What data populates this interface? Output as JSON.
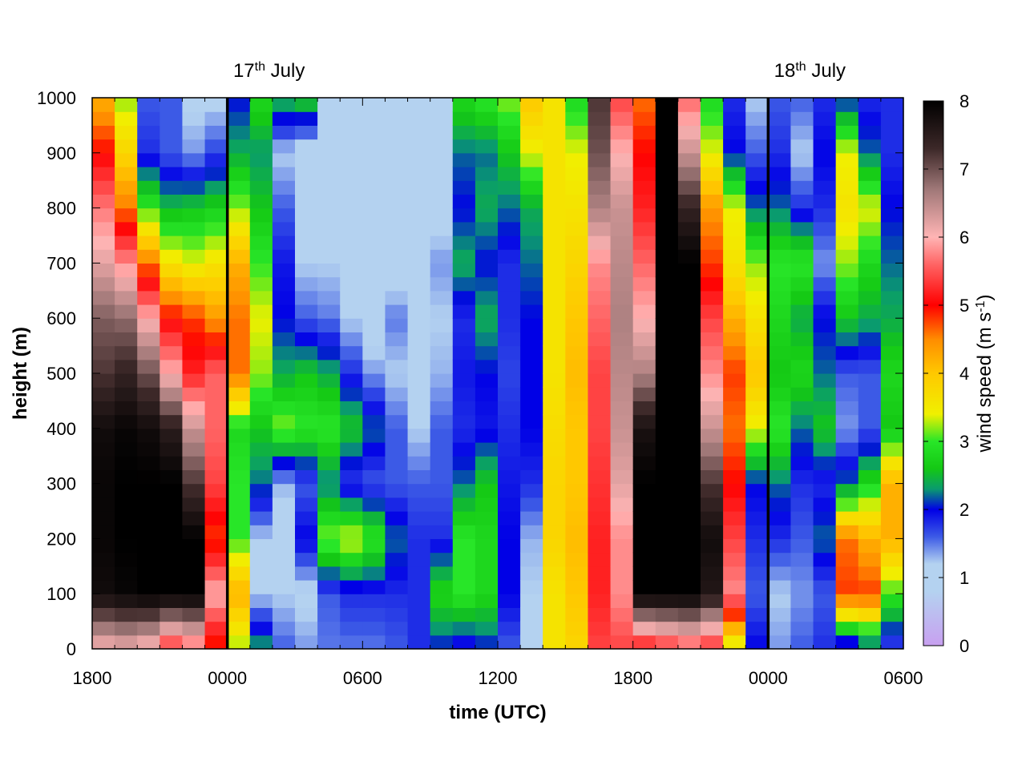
{
  "chart_data": {
    "type": "heatmap",
    "xlabel": "time (UTC)",
    "ylabel": "height (m)",
    "x_tick_labels": [
      "1800",
      "0000",
      "0600",
      "1200",
      "1800",
      "0000",
      "0600"
    ],
    "x_tick_hours": [
      0,
      6,
      12,
      18,
      24,
      30,
      36
    ],
    "xlim_hours": [
      0,
      36
    ],
    "y_ticks": [
      0,
      100,
      200,
      300,
      400,
      500,
      600,
      700,
      800,
      900,
      1000
    ],
    "ylim": [
      0,
      1000
    ],
    "colorbar": {
      "label_main": "wind speed (m s",
      "label_sup": "-1",
      "label_end": ")",
      "ticks": [
        0,
        1,
        2,
        3,
        4,
        5,
        6,
        7,
        8
      ],
      "range": [
        0,
        8
      ]
    },
    "day_markers": [
      {
        "hour": 6,
        "label": "17",
        "sup": "th",
        "suffix": " July"
      },
      {
        "hour": 30,
        "label": "18",
        "sup": "th",
        "suffix": " July"
      }
    ],
    "colormap": [
      [
        0,
        "#c8a0f0"
      ],
      [
        0.8,
        "#b4d2f0"
      ],
      [
        1.2,
        "#b4d2f0"
      ],
      [
        1.6,
        "#3c5ae6"
      ],
      [
        2,
        "#0000e6"
      ],
      [
        2.3,
        "#0a9b6e"
      ],
      [
        2.6,
        "#14c814"
      ],
      [
        3,
        "#28e628"
      ],
      [
        3.4,
        "#f0f000"
      ],
      [
        4,
        "#ffc800"
      ],
      [
        4.5,
        "#ff8c00"
      ],
      [
        5,
        "#ff0000"
      ],
      [
        5.6,
        "#ff6464"
      ],
      [
        6,
        "#ffb4b4"
      ],
      [
        6.7,
        "#a07878"
      ],
      [
        7.3,
        "#3c2828"
      ],
      [
        8,
        "#000000"
      ]
    ],
    "grid_hours": [
      0,
      1,
      2,
      3,
      4,
      5,
      6,
      7,
      8,
      9,
      10,
      11,
      12,
      13,
      14,
      15,
      16,
      17,
      18,
      19,
      20,
      21,
      22,
      23,
      24,
      25,
      26,
      27,
      28,
      29,
      30,
      31,
      32,
      33,
      34,
      35
    ],
    "grid_heights": [
      0,
      100,
      200,
      300,
      400,
      500,
      600,
      700,
      800,
      900,
      1000
    ],
    "wind_speed": [
      [
        6.0,
        7.8,
        7.9,
        7.9,
        7.8,
        7.2,
        6.9,
        6.2,
        5.7,
        5.0,
        4.2
      ],
      [
        6.1,
        7.9,
        8.0,
        8.0,
        7.9,
        7.4,
        6.8,
        5.8,
        4.6,
        3.8,
        3.2
      ],
      [
        5.9,
        8.0,
        8.0,
        8.0,
        7.8,
        7.0,
        6.0,
        4.6,
        3.0,
        1.8,
        1.6
      ],
      [
        5.2,
        8.0,
        8.0,
        8.0,
        7.5,
        6.0,
        5.0,
        3.6,
        2.5,
        1.6,
        1.6
      ],
      [
        5.5,
        8.0,
        8.0,
        7.2,
        6.4,
        5.2,
        4.8,
        3.4,
        2.6,
        1.4,
        1.1
      ],
      [
        4.8,
        6.0,
        4.8,
        5.4,
        5.6,
        5.6,
        4.4,
        3.6,
        2.7,
        1.7,
        1.1
      ],
      [
        3.2,
        4.2,
        3.0,
        3.0,
        2.8,
        4.6,
        4.6,
        4.2,
        3.2,
        2.4,
        2.0
      ],
      [
        2.4,
        1.2,
        1.2,
        2.2,
        2.6,
        3.2,
        3.4,
        3.0,
        2.6,
        2.3,
        2.8
      ],
      [
        1.6,
        1.2,
        1.0,
        1.3,
        3.2,
        2.4,
        2.0,
        1.9,
        1.6,
        1.2,
        2.5
      ],
      [
        1.4,
        1.1,
        2.0,
        1.6,
        3.0,
        2.6,
        1.6,
        1.2,
        1.0,
        0.9,
        2.7
      ],
      [
        1.5,
        1.6,
        3.2,
        2.2,
        3.0,
        2.4,
        1.5,
        1.2,
        1.1,
        1.0,
        1.0
      ],
      [
        1.5,
        1.8,
        3.4,
        1.7,
        2.6,
        1.8,
        1.2,
        1.0,
        1.0,
        0.9,
        0.9
      ],
      [
        1.5,
        1.8,
        3.0,
        1.6,
        2.2,
        1.4,
        0.9,
        0.9,
        0.9,
        0.9,
        1.0
      ],
      [
        1.6,
        1.8,
        2.2,
        1.6,
        1.6,
        1.2,
        1.5,
        0.9,
        0.9,
        0.9,
        1.0
      ],
      [
        1.8,
        1.8,
        1.8,
        1.6,
        1.2,
        1.1,
        1.0,
        0.8,
        0.8,
        0.9,
        1.0
      ],
      [
        2.0,
        2.8,
        1.8,
        1.6,
        1.6,
        1.3,
        1.2,
        1.4,
        1.0,
        1.2,
        1.1
      ],
      [
        1.8,
        3.0,
        3.0,
        2.2,
        1.8,
        1.9,
        1.8,
        2.4,
        2.0,
        2.2,
        2.8
      ],
      [
        2.0,
        2.8,
        2.8,
        2.6,
        1.9,
        2.0,
        2.4,
        2.0,
        2.4,
        2.2,
        3.0
      ],
      [
        1.6,
        2.0,
        2.0,
        1.9,
        1.8,
        1.7,
        1.8,
        1.8,
        2.2,
        2.6,
        3.2
      ],
      [
        1.2,
        1.2,
        1.3,
        1.8,
        2.0,
        2.0,
        2.0,
        2.2,
        2.4,
        3.4,
        4.0
      ],
      [
        3.6,
        3.6,
        3.8,
        3.8,
        3.7,
        3.6,
        3.6,
        3.6,
        3.6,
        3.6,
        3.6
      ],
      [
        3.8,
        4.0,
        4.1,
        4.0,
        4.0,
        4.1,
        4.0,
        3.8,
        3.6,
        3.4,
        2.8
      ],
      [
        5.4,
        5.2,
        5.2,
        5.3,
        5.4,
        5.4,
        5.6,
        5.8,
        6.6,
        7.0,
        7.2
      ],
      [
        5.4,
        5.8,
        5.8,
        6.2,
        6.4,
        6.5,
        6.6,
        6.5,
        6.4,
        6.0,
        5.4
      ],
      [
        5.0,
        8.0,
        8.0,
        8.0,
        7.7,
        6.6,
        6.0,
        5.6,
        5.2,
        5.0,
        4.6
      ],
      [
        5.2,
        8.0,
        8.0,
        8.0,
        8.0,
        8.0,
        8.0,
        8.0,
        8.0,
        8.0,
        8.0
      ],
      [
        5.4,
        8.0,
        8.0,
        8.0,
        8.0,
        8.0,
        8.0,
        8.0,
        7.4,
        6.4,
        5.6
      ],
      [
        5.2,
        7.6,
        7.8,
        7.2,
        6.4,
        5.8,
        5.4,
        4.8,
        4.4,
        3.4,
        2.8
      ],
      [
        3.2,
        5.8,
        5.4,
        5.0,
        4.6,
        4.8,
        4.2,
        3.6,
        3.4,
        2.0,
        1.8
      ],
      [
        2.0,
        1.6,
        1.8,
        2.0,
        3.4,
        4.0,
        3.6,
        3.2,
        2.2,
        1.6,
        1.2
      ],
      [
        1.4,
        1.2,
        1.8,
        2.2,
        3.0,
        2.6,
        2.8,
        3.0,
        2.2,
        1.8,
        1.6
      ],
      [
        1.6,
        1.4,
        1.6,
        1.8,
        2.2,
        2.8,
        2.4,
        3.0,
        1.8,
        1.2,
        1.6
      ],
      [
        1.8,
        1.6,
        2.2,
        1.8,
        2.6,
        2.2,
        2.0,
        1.4,
        1.8,
        2.0,
        1.8
      ],
      [
        1.6,
        4.8,
        4.6,
        2.2,
        1.4,
        1.6,
        2.6,
        3.2,
        3.6,
        3.4,
        2.0
      ],
      [
        2.0,
        4.8,
        4.2,
        2.8,
        1.6,
        1.6,
        2.4,
        2.8,
        3.4,
        2.2,
        1.8
      ],
      [
        1.6,
        3.0,
        4.2,
        4.2,
        2.6,
        2.8,
        2.4,
        2.2,
        2.0,
        1.8,
        1.8
      ]
    ]
  }
}
